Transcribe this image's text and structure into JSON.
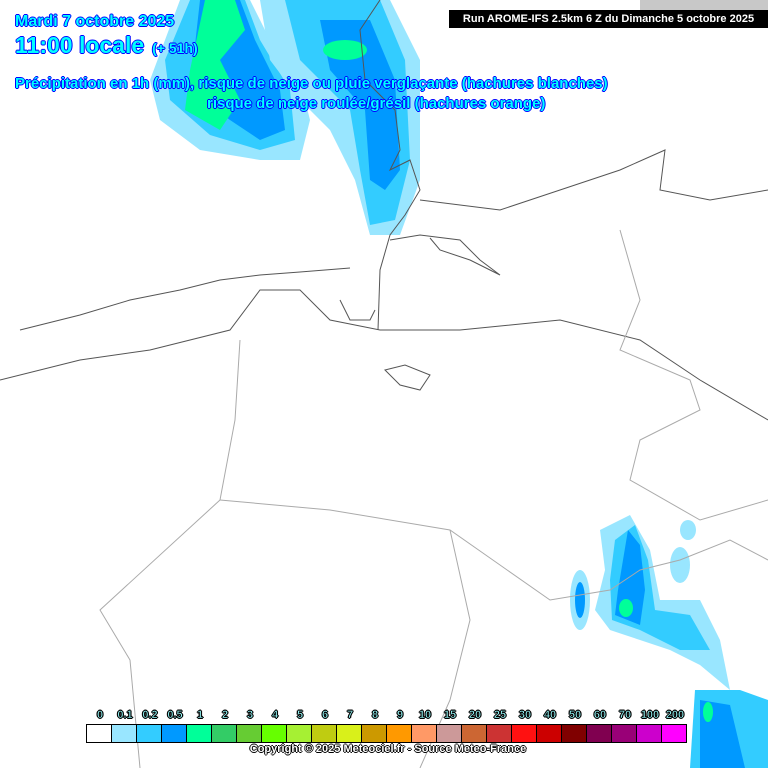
{
  "header": {
    "date": "Mardi 7 octobre 2025",
    "time": "11:00 locale",
    "lead": "(+ 51h)",
    "title_line1": "Précipitation en 1h (mm), risque de neige ou pluie verglaçante (hachures blanches)",
    "title_line2": "risque de neige roulée/grésil (hachures orange)"
  },
  "run_info": "Run AROME-IFS 2.5km 6 Z du Dimanche 5 octobre 2025",
  "legend": {
    "labels": [
      "0",
      "0.1",
      "0.2",
      "0.5",
      "1",
      "2",
      "3",
      "4",
      "5",
      "6",
      "7",
      "8",
      "9",
      "10",
      "15",
      "20",
      "25",
      "30",
      "40",
      "50",
      "60",
      "70",
      "100",
      "200"
    ],
    "colors": [
      "#ffffff",
      "#99e6ff",
      "#33ccff",
      "#0099ff",
      "#00ff99",
      "#33cc66",
      "#66cc33",
      "#66ff00",
      "#a6f033",
      "#bfcc11",
      "#d9f01a",
      "#cc9900",
      "#ff9900",
      "#ff9966",
      "#cc9999",
      "#cc6633",
      "#cc3333",
      "#ff1111",
      "#cc0000",
      "#800000",
      "#800050",
      "#990077",
      "#cc00cc",
      "#ff00ff"
    ]
  },
  "copyright": "Copyright © 2025 Meteociel.fr - Source Meteo-France"
}
